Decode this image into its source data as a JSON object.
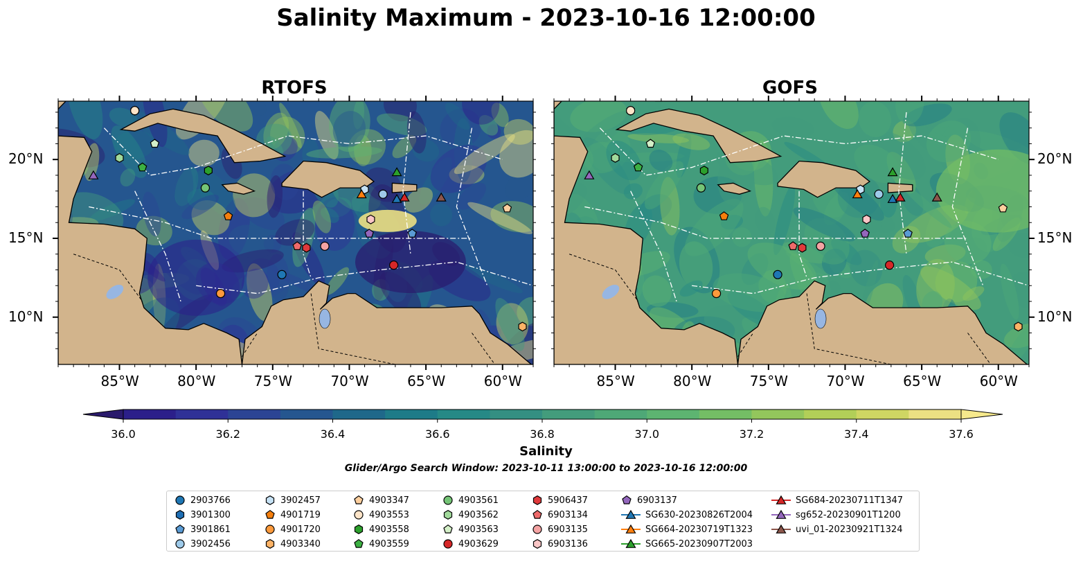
{
  "title": "Salinity Maximum - 2023-10-16 12:00:00",
  "panels": [
    {
      "title": "RTOFS"
    },
    {
      "title": "GOFS"
    }
  ],
  "lon_ticks": [
    "85°W",
    "80°W",
    "75°W",
    "70°W",
    "65°W",
    "60°W"
  ],
  "lat_ticks": [
    "20°N",
    "15°N",
    "10°N"
  ],
  "colorbar": {
    "label": "Salinity",
    "ticks": [
      "36.0",
      "36.2",
      "36.4",
      "36.6",
      "36.8",
      "37.0",
      "37.2",
      "37.4",
      "37.6"
    ],
    "min": 35.9,
    "max": 37.7,
    "colors": [
      "#2a1a6c",
      "#2b1f8a",
      "#2f3197",
      "#2b4494",
      "#25568f",
      "#1f688a",
      "#1e7b88",
      "#268986",
      "#348f82",
      "#439c7c",
      "#4ea877",
      "#5db471",
      "#74be65",
      "#93c65c",
      "#b2cf58",
      "#cfd663",
      "#ece083",
      "#f6e98c"
    ]
  },
  "subtitle": "Glider/Argo Search Window: 2023-10-11 13:00:00 to 2023-10-16 12:00:00",
  "legend": [
    {
      "label": "2903766",
      "marker": "circle",
      "color": "#1f77b4"
    },
    {
      "label": "3901300",
      "marker": "hexagon",
      "color": "#1f6fb4"
    },
    {
      "label": "3901861",
      "marker": "pentagon",
      "color": "#5a9bd4"
    },
    {
      "label": "3902456",
      "marker": "circle",
      "color": "#9ecae9"
    },
    {
      "label": "3902457",
      "marker": "hexagon",
      "color": "#c6e2f5"
    },
    {
      "label": "4901719",
      "marker": "pentagon",
      "color": "#f57f0e"
    },
    {
      "label": "4901720",
      "marker": "circle",
      "color": "#fd9a3c"
    },
    {
      "label": "4903340",
      "marker": "hexagon",
      "color": "#fdb366"
    },
    {
      "label": "4903347",
      "marker": "pentagon",
      "color": "#fdcf9e"
    },
    {
      "label": "4903553",
      "marker": "circle",
      "color": "#fde4c8"
    },
    {
      "label": "4903558",
      "marker": "hexagon",
      "color": "#2ca02c"
    },
    {
      "label": "4903559",
      "marker": "pentagon",
      "color": "#3cb043"
    },
    {
      "label": "4903561",
      "marker": "circle",
      "color": "#74c476"
    },
    {
      "label": "4903562",
      "marker": "hexagon",
      "color": "#a1d99b"
    },
    {
      "label": "4903563",
      "marker": "pentagon",
      "color": "#d4f0c8"
    },
    {
      "label": "4903629",
      "marker": "circle",
      "color": "#d62728"
    },
    {
      "label": "5906437",
      "marker": "hexagon",
      "color": "#e0393b"
    },
    {
      "label": "6903134",
      "marker": "pentagon",
      "color": "#ee6a6a"
    },
    {
      "label": "6903135",
      "marker": "circle",
      "color": "#f4a3a3"
    },
    {
      "label": "6903136",
      "marker": "hexagon",
      "color": "#fac6c6"
    },
    {
      "label": "6903137",
      "marker": "pentagon",
      "color": "#9467bd"
    },
    {
      "label": "SG630-20230826T2004",
      "marker": "triangle",
      "color": "#1f77b4"
    },
    {
      "label": "SG664-20230719T1323",
      "marker": "triangle",
      "color": "#ff7f0e"
    },
    {
      "label": "SG665-20230907T2003",
      "marker": "triangle",
      "color": "#2ca02c"
    },
    {
      "label": "SG684-20230711T1347",
      "marker": "triangle",
      "color": "#d62728"
    },
    {
      "label": "sg652-20230901T1200",
      "marker": "triangle",
      "color": "#9467bd"
    },
    {
      "label": "uvi_01-20230921T1324",
      "marker": "triangle",
      "color": "#8c564b"
    }
  ],
  "observations": [
    {
      "label": "2903766",
      "lon": -74.4,
      "lat": 12.7
    },
    {
      "label": "3901300",
      "lon": -84.0,
      "lat": 23.1
    },
    {
      "label": "3901861",
      "lon": -65.9,
      "lat": 15.3
    },
    {
      "label": "3902456",
      "lon": -67.8,
      "lat": 17.8
    },
    {
      "label": "3902457",
      "lon": -69.0,
      "lat": 18.1
    },
    {
      "label": "4901719",
      "lon": -77.9,
      "lat": 16.4
    },
    {
      "label": "4901720",
      "lon": -78.4,
      "lat": 11.5
    },
    {
      "label": "4903340",
      "lon": -58.7,
      "lat": 9.4
    },
    {
      "label": "4903347",
      "lon": -59.7,
      "lat": 16.9
    },
    {
      "label": "4903553",
      "lon": -84.0,
      "lat": 23.1
    },
    {
      "label": "4903558",
      "lon": -79.2,
      "lat": 19.3
    },
    {
      "label": "4903559",
      "lon": -83.5,
      "lat": 19.5
    },
    {
      "label": "4903561",
      "lon": -79.4,
      "lat": 18.2
    },
    {
      "label": "4903562",
      "lon": -85.0,
      "lat": 20.1
    },
    {
      "label": "4903563",
      "lon": -82.7,
      "lat": 21.0
    },
    {
      "label": "4903629",
      "lon": -67.1,
      "lat": 13.3
    },
    {
      "label": "5906437",
      "lon": -72.8,
      "lat": 14.4
    },
    {
      "label": "6903134",
      "lon": -73.4,
      "lat": 14.5
    },
    {
      "label": "6903135",
      "lon": -71.6,
      "lat": 14.5
    },
    {
      "label": "6903136",
      "lon": -68.6,
      "lat": 16.2
    },
    {
      "label": "6903137",
      "lon": -68.7,
      "lat": 15.3
    },
    {
      "label": "SG630-20230826T2004",
      "lon": -66.9,
      "lat": 17.5
    },
    {
      "label": "SG664-20230719T1323",
      "lon": -69.2,
      "lat": 17.8
    },
    {
      "label": "SG665-20230907T2003",
      "lon": -66.9,
      "lat": 19.2
    },
    {
      "label": "SG684-20230711T1347",
      "lon": -66.4,
      "lat": 17.6
    },
    {
      "label": "sg652-20230901T1200",
      "lon": -86.7,
      "lat": 19.0
    },
    {
      "label": "uvi_01-20230921T1324",
      "lon": -64.0,
      "lat": 17.6
    }
  ]
}
